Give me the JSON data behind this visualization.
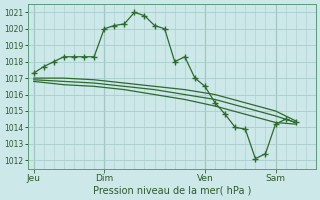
{
  "bg_color": "#cce8e8",
  "grid_color": "#aacccc",
  "line_color": "#2d6a2d",
  "marker_color": "#2d6a2d",
  "title": "Pression niveau de la mer( hPa )",
  "ylim": [
    1011.5,
    1021.5
  ],
  "yticks": [
    1012,
    1013,
    1014,
    1015,
    1016,
    1017,
    1018,
    1019,
    1020,
    1021
  ],
  "day_labels": [
    "Jeu",
    "Dim",
    "Ven",
    "Sam"
  ],
  "day_positions": [
    0,
    3.5,
    8.5,
    12.0
  ],
  "xlim": [
    -0.3,
    14.0
  ],
  "series1_x": [
    0,
    0.5,
    1.0,
    1.5,
    2.0,
    2.5,
    3.0,
    3.5,
    4.0,
    4.5,
    5.0,
    5.5,
    6.0,
    6.5,
    7.0,
    7.5,
    8.0,
    8.5,
    9.0,
    9.5,
    10.0,
    10.5,
    11.0,
    11.5,
    12.0,
    12.5,
    13.0
  ],
  "series1_y": [
    1017.3,
    1017.7,
    1018.0,
    1018.3,
    1018.3,
    1018.3,
    1018.3,
    1020.0,
    1020.2,
    1020.3,
    1021.0,
    1020.8,
    1020.2,
    1020.0,
    1018.0,
    1018.3,
    1017.0,
    1016.5,
    1015.5,
    1014.8,
    1014.0,
    1013.9,
    1012.1,
    1012.4,
    1014.2,
    1014.5,
    1014.3
  ],
  "series2_x": [
    0,
    1.5,
    3.0,
    4.5,
    6.0,
    7.5,
    9.0,
    10.5,
    12.0,
    13.0
  ],
  "series2_y": [
    1017.0,
    1017.0,
    1016.9,
    1016.7,
    1016.5,
    1016.3,
    1016.0,
    1015.5,
    1015.0,
    1014.4
  ],
  "series3_x": [
    0,
    1.5,
    3.0,
    4.5,
    6.0,
    7.5,
    9.0,
    10.5,
    12.0,
    13.0
  ],
  "series3_y": [
    1016.9,
    1016.8,
    1016.7,
    1016.5,
    1016.3,
    1016.0,
    1015.7,
    1015.2,
    1014.7,
    1014.3
  ],
  "series4_x": [
    0,
    1.5,
    3.0,
    4.5,
    6.0,
    7.5,
    9.0,
    10.5,
    12.0,
    13.0
  ],
  "series4_y": [
    1016.8,
    1016.6,
    1016.5,
    1016.3,
    1016.0,
    1015.7,
    1015.3,
    1014.8,
    1014.3,
    1014.2
  ]
}
